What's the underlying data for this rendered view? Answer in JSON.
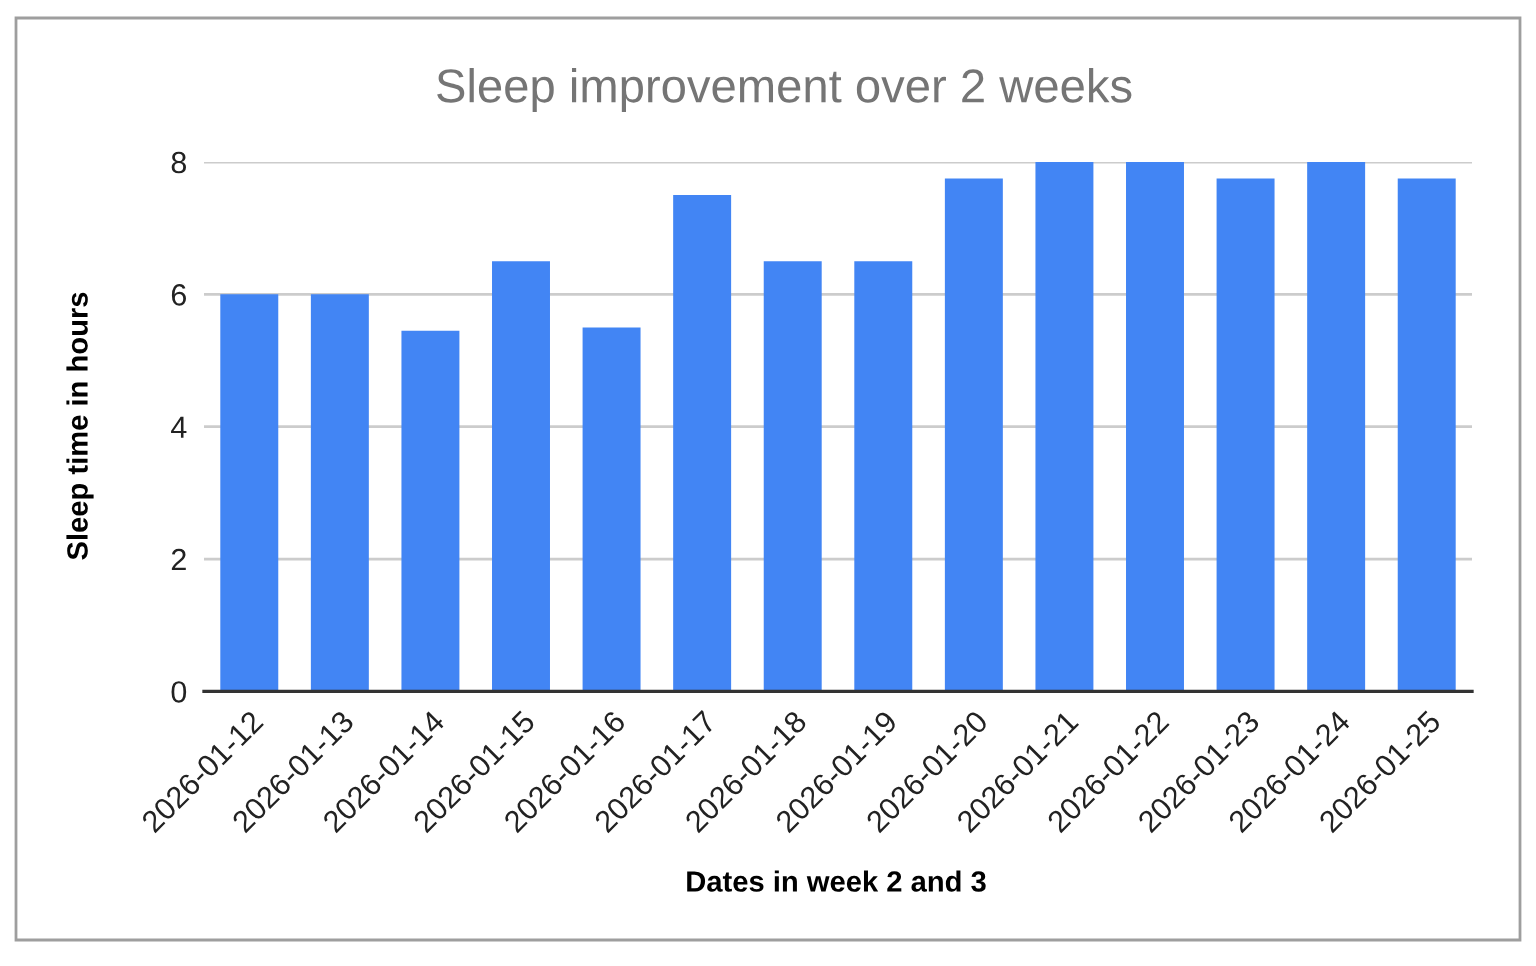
{
  "chart_data": {
    "type": "bar",
    "title": "Sleep improvement over 2 weeks",
    "xlabel": "Dates in week 2 and 3",
    "ylabel": "Sleep time in hours",
    "categories": [
      "2026-01-12",
      "2026-01-13",
      "2026-01-14",
      "2026-01-15",
      "2026-01-16",
      "2026-01-17",
      "2026-01-18",
      "2026-01-19",
      "2026-01-20",
      "2026-01-21",
      "2026-01-22",
      "2026-01-23",
      "2026-01-24",
      "2026-01-25"
    ],
    "values": [
      6,
      6,
      5.45,
      6.5,
      5.5,
      7.5,
      6.5,
      6.5,
      7.75,
      8,
      8,
      7.75,
      8,
      7.75
    ],
    "color": "#4285f4",
    "ylim": [
      0,
      8
    ],
    "yticks": [
      0,
      2,
      4,
      6,
      8
    ],
    "grid": "y"
  }
}
